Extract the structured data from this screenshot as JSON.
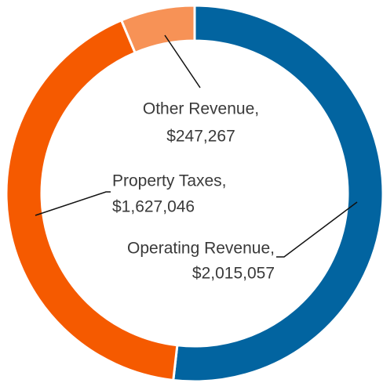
{
  "chart_data": {
    "type": "donut",
    "categories": [
      "Operating Revenue,",
      "Property Taxes,",
      "Other Revenue,"
    ],
    "values": [
      2015057,
      1627046,
      247267
    ],
    "value_labels": [
      "$2,015,057",
      "$1,627,046",
      "$247,267"
    ],
    "colors": [
      "#0264a0",
      "#f55a00",
      "#f79256"
    ]
  }
}
